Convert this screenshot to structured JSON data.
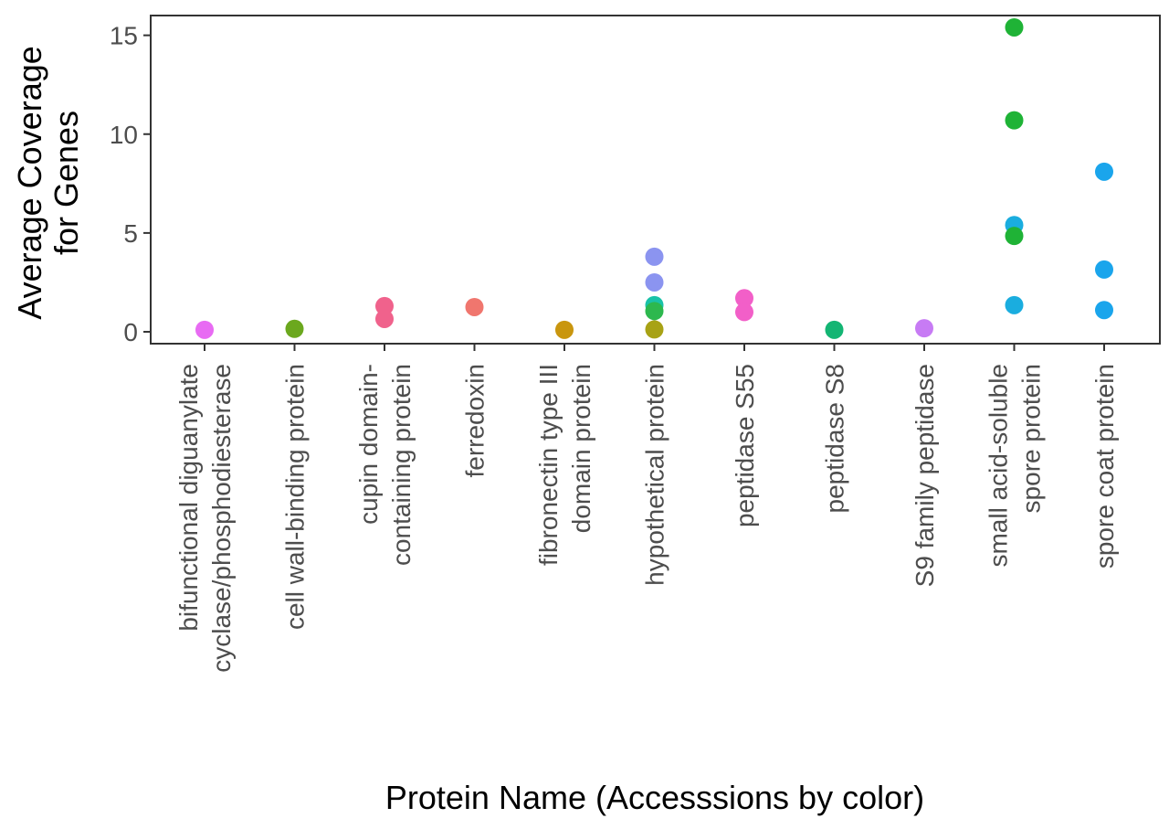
{
  "chart_data": {
    "type": "scatter",
    "title": "",
    "xlabel": "Protein Name (Accesssions by color)",
    "ylabel_lines": [
      "Average Coverage",
      "for Genes"
    ],
    "ylim": [
      -0.6,
      16.0
    ],
    "yticks": [
      0,
      5,
      10,
      15
    ],
    "grid": false,
    "legend": "none",
    "categories": [
      {
        "lines": [
          "bifunctional diguanylate",
          "cyclase/phosphodiesterase"
        ]
      },
      {
        "lines": [
          "cell wall-binding protein"
        ]
      },
      {
        "lines": [
          "cupin domain-",
          "containing protein"
        ]
      },
      {
        "lines": [
          "ferredoxin"
        ]
      },
      {
        "lines": [
          "fibronectin type III",
          "domain protein"
        ]
      },
      {
        "lines": [
          "hypothetical protein"
        ]
      },
      {
        "lines": [
          "peptidase S55"
        ]
      },
      {
        "lines": [
          "peptidase S8"
        ]
      },
      {
        "lines": [
          "S9 family peptidase"
        ]
      },
      {
        "lines": [
          "small acid-soluble",
          "spore protein"
        ]
      },
      {
        "lines": [
          "spore coat protein"
        ]
      }
    ],
    "points": [
      {
        "x": 0,
        "y": 0.1,
        "color": "#E86BF3"
      },
      {
        "x": 1,
        "y": 0.15,
        "color": "#6BA81E"
      },
      {
        "x": 2,
        "y": 1.3,
        "color": "#F0628C"
      },
      {
        "x": 2,
        "y": 0.65,
        "color": "#F0628C"
      },
      {
        "x": 3,
        "y": 1.25,
        "color": "#F0766E"
      },
      {
        "x": 4,
        "y": 0.1,
        "color": "#C9960E"
      },
      {
        "x": 5,
        "y": 3.8,
        "color": "#8B94F0"
      },
      {
        "x": 5,
        "y": 2.5,
        "color": "#8B94F0"
      },
      {
        "x": 5,
        "y": 1.35,
        "color": "#19C2A8"
      },
      {
        "x": 5,
        "y": 1.05,
        "color": "#2DB84E"
      },
      {
        "x": 5,
        "y": 0.12,
        "color": "#A8A215"
      },
      {
        "x": 6,
        "y": 1.7,
        "color": "#F25FC8"
      },
      {
        "x": 6,
        "y": 1.0,
        "color": "#F25FC8"
      },
      {
        "x": 7,
        "y": 0.1,
        "color": "#13B573"
      },
      {
        "x": 8,
        "y": 0.18,
        "color": "#C77BF4"
      },
      {
        "x": 9,
        "y": 15.4,
        "color": "#1FB336"
      },
      {
        "x": 9,
        "y": 10.7,
        "color": "#1FB336"
      },
      {
        "x": 9,
        "y": 5.4,
        "color": "#1AADDF"
      },
      {
        "x": 9,
        "y": 4.85,
        "color": "#1FB336"
      },
      {
        "x": 9,
        "y": 1.35,
        "color": "#1AADDF"
      },
      {
        "x": 10,
        "y": 8.1,
        "color": "#1AA5EC"
      },
      {
        "x": 10,
        "y": 3.15,
        "color": "#1AA5EC"
      },
      {
        "x": 10,
        "y": 1.1,
        "color": "#1AA5EC"
      }
    ]
  }
}
